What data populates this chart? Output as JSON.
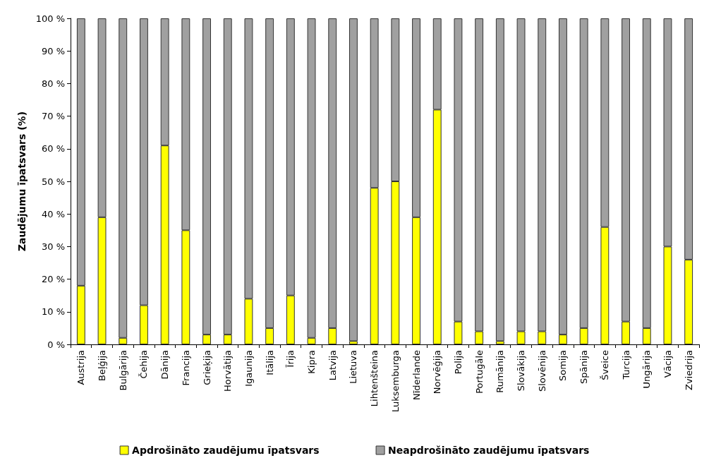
{
  "chart_data": {
    "type": "bar",
    "stacked": true,
    "ylabel": "Zaudējumu īpatsvars (%)",
    "categories": [
      "Austrija",
      "Beļģija",
      "Bulgārija",
      "Čehija",
      "Dānija",
      "Francija",
      "Grieķija",
      "Horvātija",
      "Igaunija",
      "Itālija",
      "Īrija",
      "Kipra",
      "Latvija",
      "Lietuva",
      "Lihtenšteina",
      "Luksemburga",
      "Nīderlande",
      "Norvēģija",
      "Polija",
      "Portugāle",
      "Rumānija",
      "Slovākija",
      "Slovēnija",
      "Somija",
      "Spānija",
      "Šveice",
      "Turcija",
      "Ungārija",
      "Vācija",
      "Zviedrija"
    ],
    "series": [
      {
        "name": "Apdrošināto zaudējumu īpatsvars",
        "color": "#ffff00",
        "values": [
          18,
          39,
          2,
          12,
          61,
          35,
          3,
          3,
          14,
          5,
          15,
          2,
          5,
          1,
          48,
          50,
          39,
          72,
          7,
          4,
          1,
          4,
          4,
          3,
          5,
          36,
          7,
          5,
          30,
          26
        ]
      },
      {
        "name": "Neapdrošināto zaudējumu īpatsvars",
        "color": "#a0a0a0",
        "values": [
          82,
          61,
          98,
          88,
          39,
          65,
          97,
          97,
          86,
          95,
          85,
          98,
          95,
          99,
          52,
          50,
          61,
          28,
          93,
          96,
          99,
          96,
          96,
          97,
          95,
          64,
          93,
          95,
          70,
          74
        ]
      }
    ],
    "ylim": [
      0,
      100
    ],
    "yticks": [
      {
        "value": 0,
        "label": "0 %"
      },
      {
        "value": 10,
        "label": "10 %"
      },
      {
        "value": 20,
        "label": "20 %"
      },
      {
        "value": 30,
        "label": "30 %"
      },
      {
        "value": 40,
        "label": "40 %"
      },
      {
        "value": 50,
        "label": "50 %"
      },
      {
        "value": 60,
        "label": "60 %"
      },
      {
        "value": 70,
        "label": "70 %"
      },
      {
        "value": 80,
        "label": "80 %"
      },
      {
        "value": 90,
        "label": "90 %"
      },
      {
        "value": 100,
        "label": "100 %"
      }
    ],
    "grid": false,
    "legend": "bottom"
  }
}
